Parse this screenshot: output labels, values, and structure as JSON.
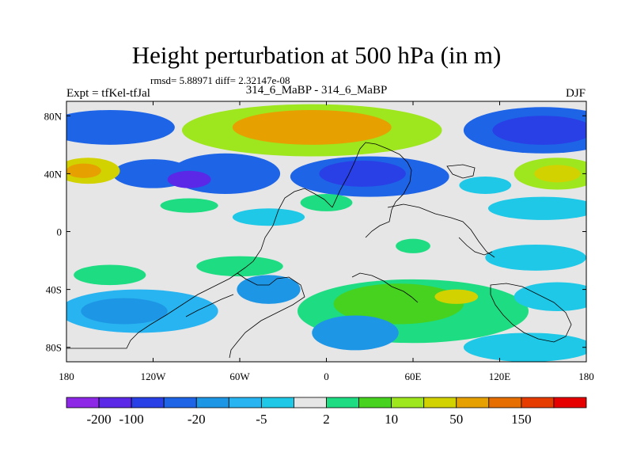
{
  "chart_data": {
    "type": "heatmap",
    "title": "Height perturbation at 500 hPa (in m)",
    "subtitle_left": "Expt = tfKel-tfJal",
    "subtitle_center": "314_6_MaBP - 314_6_MaBP",
    "subtitle_right": "DJF",
    "stats_text": "rmsd= 5.88971 diff= 2.32147e-08",
    "x_ticks": [
      "180",
      "120W",
      "60W",
      "0",
      "60E",
      "120E",
      "180"
    ],
    "x_tick_values": [
      -180,
      -120,
      -60,
      0,
      60,
      120,
      180
    ],
    "y_ticks": [
      "80N",
      "40N",
      "0",
      "40S",
      "80S"
    ],
    "y_tick_values": [
      80,
      40,
      0,
      -40,
      -80
    ],
    "xlim": [
      -180,
      180
    ],
    "ylim": [
      -90,
      90
    ],
    "grid": false,
    "colorbar": {
      "placement": "bottom",
      "levels": [
        -200,
        -100,
        -50,
        -20,
        -10,
        -5,
        -2,
        2,
        5,
        10,
        20,
        50,
        100,
        150
      ],
      "labels": [
        "-200",
        "-100",
        "-20",
        "-5",
        "2",
        "10",
        "50",
        "150"
      ],
      "label_levels": [
        -200,
        -100,
        -20,
        -5,
        2,
        10,
        50,
        150
      ],
      "colors": [
        "#8c28e6",
        "#5a28e6",
        "#2840e6",
        "#1e64e6",
        "#1e96e6",
        "#28b4f0",
        "#1ec8e6",
        "#e6e6e6",
        "#1edc82",
        "#46d21e",
        "#9ee61e",
        "#d2d200",
        "#e6a000",
        "#e66e00",
        "#e63c00",
        "#e60000"
      ]
    },
    "blobs": [
      {
        "lon": -150,
        "lat": 72,
        "rx": 45,
        "ry": 12,
        "level": 3
      },
      {
        "lon": -120,
        "lat": 40,
        "rx": 28,
        "ry": 10,
        "level": 3
      },
      {
        "lon": -70,
        "lat": 40,
        "rx": 38,
        "ry": 14,
        "level": 3
      },
      {
        "lon": -95,
        "lat": 36,
        "rx": 15,
        "ry": 6,
        "level": 1
      },
      {
        "lon": -165,
        "lat": 42,
        "rx": 22,
        "ry": 9,
        "level": 11
      },
      {
        "lon": -168,
        "lat": 42,
        "rx": 12,
        "ry": 5,
        "level": 12
      },
      {
        "lon": -10,
        "lat": 70,
        "rx": 90,
        "ry": 18,
        "level": 10
      },
      {
        "lon": -10,
        "lat": 72,
        "rx": 55,
        "ry": 12,
        "level": 12
      },
      {
        "lon": 30,
        "lat": 38,
        "rx": 55,
        "ry": 14,
        "level": 3
      },
      {
        "lon": 25,
        "lat": 40,
        "rx": 30,
        "ry": 9,
        "level": 2
      },
      {
        "lon": 150,
        "lat": 70,
        "rx": 55,
        "ry": 16,
        "level": 3
      },
      {
        "lon": 150,
        "lat": 70,
        "rx": 35,
        "ry": 10,
        "level": 2
      },
      {
        "lon": 160,
        "lat": 40,
        "rx": 30,
        "ry": 11,
        "level": 10
      },
      {
        "lon": 160,
        "lat": 40,
        "rx": 16,
        "ry": 6,
        "level": 11
      },
      {
        "lon": 110,
        "lat": 32,
        "rx": 18,
        "ry": 6,
        "level": 6
      },
      {
        "lon": 150,
        "lat": 16,
        "rx": 38,
        "ry": 8,
        "level": 6
      },
      {
        "lon": -40,
        "lat": 10,
        "rx": 25,
        "ry": 6,
        "level": 6
      },
      {
        "lon": -95,
        "lat": 18,
        "rx": 20,
        "ry": 5,
        "level": 8
      },
      {
        "lon": 0,
        "lat": 20,
        "rx": 18,
        "ry": 6,
        "level": 8
      },
      {
        "lon": 60,
        "lat": -10,
        "rx": 12,
        "ry": 5,
        "level": 8
      },
      {
        "lon": 145,
        "lat": -18,
        "rx": 35,
        "ry": 9,
        "level": 6
      },
      {
        "lon": -150,
        "lat": -30,
        "rx": 25,
        "ry": 7,
        "level": 8
      },
      {
        "lon": -60,
        "lat": -24,
        "rx": 30,
        "ry": 7,
        "level": 8
      },
      {
        "lon": -130,
        "lat": -55,
        "rx": 55,
        "ry": 15,
        "level": 5
      },
      {
        "lon": -140,
        "lat": -55,
        "rx": 30,
        "ry": 9,
        "level": 4
      },
      {
        "lon": -40,
        "lat": -40,
        "rx": 22,
        "ry": 10,
        "level": 4
      },
      {
        "lon": 60,
        "lat": -55,
        "rx": 80,
        "ry": 22,
        "level": 8
      },
      {
        "lon": 50,
        "lat": -50,
        "rx": 45,
        "ry": 14,
        "level": 9
      },
      {
        "lon": 90,
        "lat": -45,
        "rx": 15,
        "ry": 5,
        "level": 11
      },
      {
        "lon": 20,
        "lat": -70,
        "rx": 30,
        "ry": 12,
        "level": 4
      },
      {
        "lon": 160,
        "lat": -45,
        "rx": 30,
        "ry": 10,
        "level": 6
      },
      {
        "lon": 140,
        "lat": -80,
        "rx": 45,
        "ry": 10,
        "level": 6
      }
    ]
  }
}
